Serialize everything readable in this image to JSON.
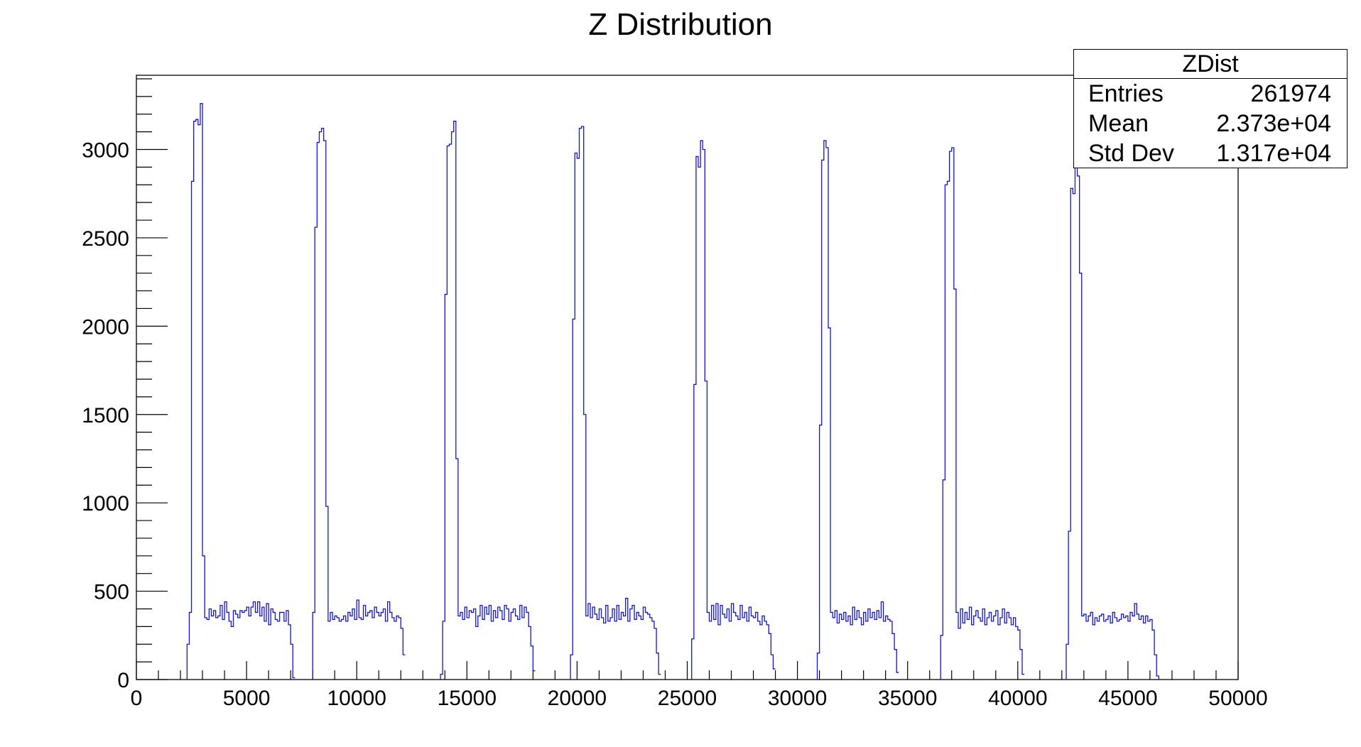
{
  "title": "Z Distribution",
  "colors": {
    "line": "#1414c8",
    "axis": "#000000"
  },
  "stats": {
    "name": "ZDist",
    "rows": [
      {
        "label": "Entries",
        "value": "261974"
      },
      {
        "label": "Mean",
        "value": "2.373e+04"
      },
      {
        "label": "Std Dev",
        "value": "1.317e+04"
      }
    ]
  },
  "chart_data": {
    "type": "histogram",
    "title": "Z Distribution",
    "xlabel": "",
    "ylabel": "",
    "xlim": [
      0,
      50000
    ],
    "ylim": [
      0,
      3420
    ],
    "xticks": [
      0,
      5000,
      10000,
      15000,
      20000,
      25000,
      30000,
      35000,
      40000,
      45000,
      50000
    ],
    "xtick_labels": [
      "0",
      "5000",
      "10000",
      "15000",
      "20000",
      "25000",
      "30000",
      "35000",
      "40000",
      "45000",
      "50000"
    ],
    "yticks": [
      0,
      500,
      1000,
      1500,
      2000,
      2500,
      3000
    ],
    "ytick_labels": [
      "0",
      "500",
      "1000",
      "1500",
      "2000",
      "2500",
      "3000"
    ],
    "grid": false,
    "legend": "top-right",
    "bin_width": 100,
    "series": [
      {
        "bins": [
          {
            "x0": 2300,
            "values": [
              200,
              380,
              2820,
              3160,
              3170,
              3140,
              3260,
              700,
              350,
              340,
              400,
              360,
              390,
              350,
              360,
              420,
              340,
              440,
              380,
              330,
              300,
              390,
              370,
              350,
              390,
              380,
              390,
              410,
              360,
              410,
              440,
              380,
              440,
              360,
              410,
              330,
              430,
              310,
              400,
              380,
              340,
              330,
              380,
              380,
              330,
              390,
              310,
              200,
              10
            ]
          },
          {
            "x0": 8000,
            "values": [
              380,
              2560,
              3040,
              3100,
              3120,
              3050,
              980,
              330,
              380,
              340,
              360,
              350,
              330,
              340,
              360,
              330,
              380,
              360,
              400,
              340,
              450,
              350,
              340,
              420,
              360,
              380,
              390,
              350,
              410,
              380,
              360,
              380,
              400,
              330,
              440,
              380,
              350,
              330,
              360,
              350,
              290,
              140
            ]
          },
          {
            "x0": 13800,
            "values": [
              30,
              330,
              2180,
              3020,
              3030,
              3100,
              3160,
              1250,
              360,
              380,
              340,
              410,
              350,
              390,
              380,
              400,
              300,
              360,
              420,
              340,
              410,
              370,
              420,
              330,
              390,
              350,
              410,
              390,
              340,
              420,
              400,
              330,
              380,
              400,
              360,
              340,
              420,
              350,
              410,
              380,
              300,
              190,
              50
            ]
          },
          {
            "x0": 19700,
            "values": [
              140,
              2040,
              2980,
              2950,
              3120,
              3130,
              1500,
              360,
              430,
              350,
              410,
              370,
              340,
              400,
              350,
              320,
              420,
              330,
              350,
              400,
              330,
              420,
              340,
              380,
              360,
              460,
              330,
              400,
              420,
              340,
              380,
              360,
              340,
              410,
              380,
              370,
              350,
              330,
              290,
              150,
              30
            ]
          },
          {
            "x0": 25200,
            "values": [
              230,
              1670,
              2960,
              2900,
              3050,
              3000,
              1690,
              380,
              330,
              420,
              340,
              430,
              310,
              420,
              370,
              350,
              400,
              330,
              430,
              380,
              360,
              340,
              420,
              350,
              380,
              330,
              410,
              360,
              350,
              380,
              330,
              310,
              360,
              330,
              310,
              260,
              140,
              60
            ]
          },
          {
            "x0": 30900,
            "values": [
              150,
              1440,
              2940,
              3050,
              3010,
              1990,
              380,
              350,
              390,
              320,
              370,
              340,
              380,
              330,
              360,
              310,
              410,
              340,
              390,
              350,
              310,
              380,
              330,
              400,
              350,
              380,
              340,
              390,
              350,
              440,
              330,
              360,
              340,
              330,
              260,
              170,
              40
            ]
          },
          {
            "x0": 36500,
            "values": [
              250,
              1130,
              2800,
              2820,
              2990,
              3010,
              2210,
              380,
              290,
              400,
              320,
              380,
              340,
              410,
              310,
              360,
              390,
              350,
              330,
              400,
              310,
              350,
              380,
              330,
              360,
              390,
              310,
              350,
              400,
              320,
              380,
              350,
              310,
              350,
              300,
              280,
              170,
              30
            ]
          },
          {
            "x0": 42200,
            "values": [
              200,
              840,
              2780,
              2750,
              2950,
              2850,
              2300,
              360,
              370,
              330,
              360,
              380,
              310,
              350,
              330,
              360,
              370,
              330,
              340,
              360,
              320,
              380,
              350,
              330,
              340,
              370,
              350,
              360,
              330,
              380,
              360,
              430,
              370,
              340,
              360,
              320,
              360,
              330,
              340,
              280,
              140,
              20
            ]
          }
        ]
      }
    ]
  }
}
